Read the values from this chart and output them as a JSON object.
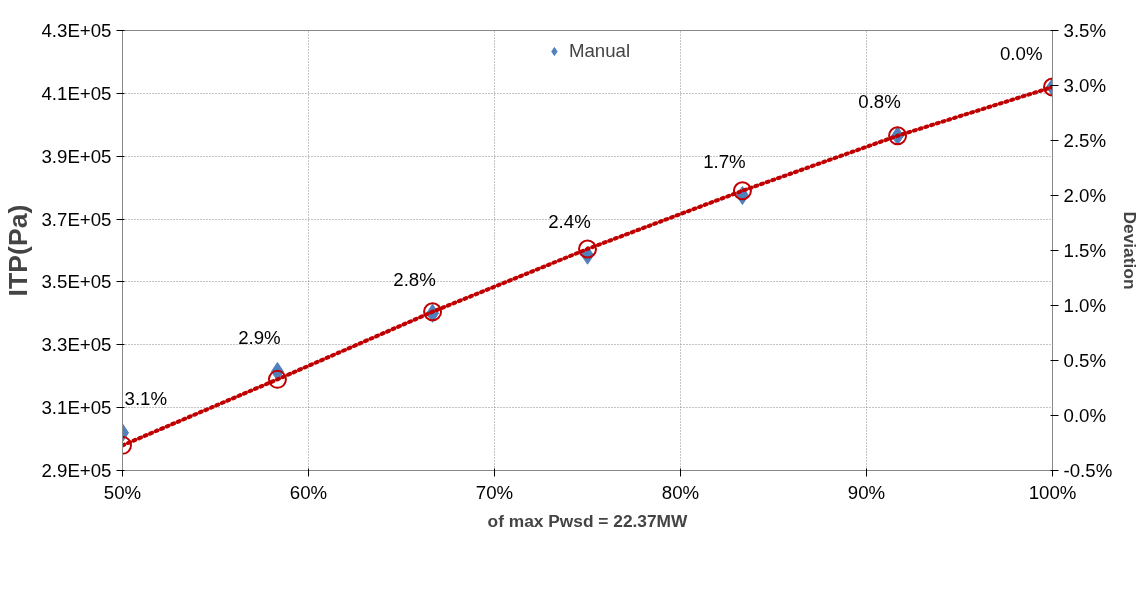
{
  "chart_data": {
    "type": "line",
    "xlabel": "of max Pwsd = 22.37MW",
    "ylabel": "ITP(Pa)",
    "y2label": "Deviation",
    "x": [
      50,
      58.33,
      66.67,
      75,
      83.33,
      91.67,
      100
    ],
    "series": [
      {
        "name": "Manual",
        "type": "scatter",
        "color": "#4f81bd",
        "marker": "diamond",
        "values": [
          302000,
          321500,
          340000,
          358500,
          377500,
          396500,
          412000
        ]
      },
      {
        "color": "#c00000",
        "marker": "circle",
        "line_style": "dotted",
        "values": [
          298000,
          319000,
          340500,
          360500,
          379000,
          396500,
          412000
        ]
      }
    ],
    "xlim": [
      50,
      100
    ],
    "xticks": [
      {
        "value": 50,
        "label": "50%"
      },
      {
        "value": 60,
        "label": "60%"
      },
      {
        "value": 70,
        "label": "70%"
      },
      {
        "value": 80,
        "label": "80%"
      },
      {
        "value": 90,
        "label": "90%"
      },
      {
        "value": 100,
        "label": "100%"
      }
    ],
    "ylim": [
      290000,
      430000
    ],
    "yticks": [
      {
        "value": 290000,
        "label": "2.9E+05"
      },
      {
        "value": 310000,
        "label": "3.1E+05"
      },
      {
        "value": 330000,
        "label": "3.3E+05"
      },
      {
        "value": 350000,
        "label": "3.5E+05"
      },
      {
        "value": 370000,
        "label": "3.7E+05"
      },
      {
        "value": 390000,
        "label": "3.9E+05"
      },
      {
        "value": 410000,
        "label": "4.1E+05"
      },
      {
        "value": 430000,
        "label": "4.3E+05"
      }
    ],
    "y2lim": [
      -0.5,
      3.5
    ],
    "y2ticks": [
      {
        "value": -0.5,
        "label": "-0.5%"
      },
      {
        "value": 0,
        "label": "0.0%"
      },
      {
        "value": 0.5,
        "label": "0.5%"
      },
      {
        "value": 1,
        "label": "1.0%"
      },
      {
        "value": 1.5,
        "label": "1.5%"
      },
      {
        "value": 2,
        "label": "2.0%"
      },
      {
        "value": 2.5,
        "label": "2.5%"
      },
      {
        "value": 3,
        "label": "3.0%"
      },
      {
        "value": 3.5,
        "label": "3.5%"
      }
    ],
    "annotations": [
      {
        "text": "3.1%",
        "x": 50,
        "y": 302000
      },
      {
        "text": "2.9%",
        "x": 58.33,
        "y": 321500
      },
      {
        "text": "2.8%",
        "x": 66.67,
        "y": 340000
      },
      {
        "text": "2.4%",
        "x": 75,
        "y": 358500
      },
      {
        "text": "1.7%",
        "x": 83.33,
        "y": 377500
      },
      {
        "text": "0.8%",
        "x": 91.67,
        "y": 396500
      },
      {
        "text": "0.0%",
        "x": 100,
        "y": 412000
      }
    ],
    "grid": true,
    "legend": "top"
  }
}
